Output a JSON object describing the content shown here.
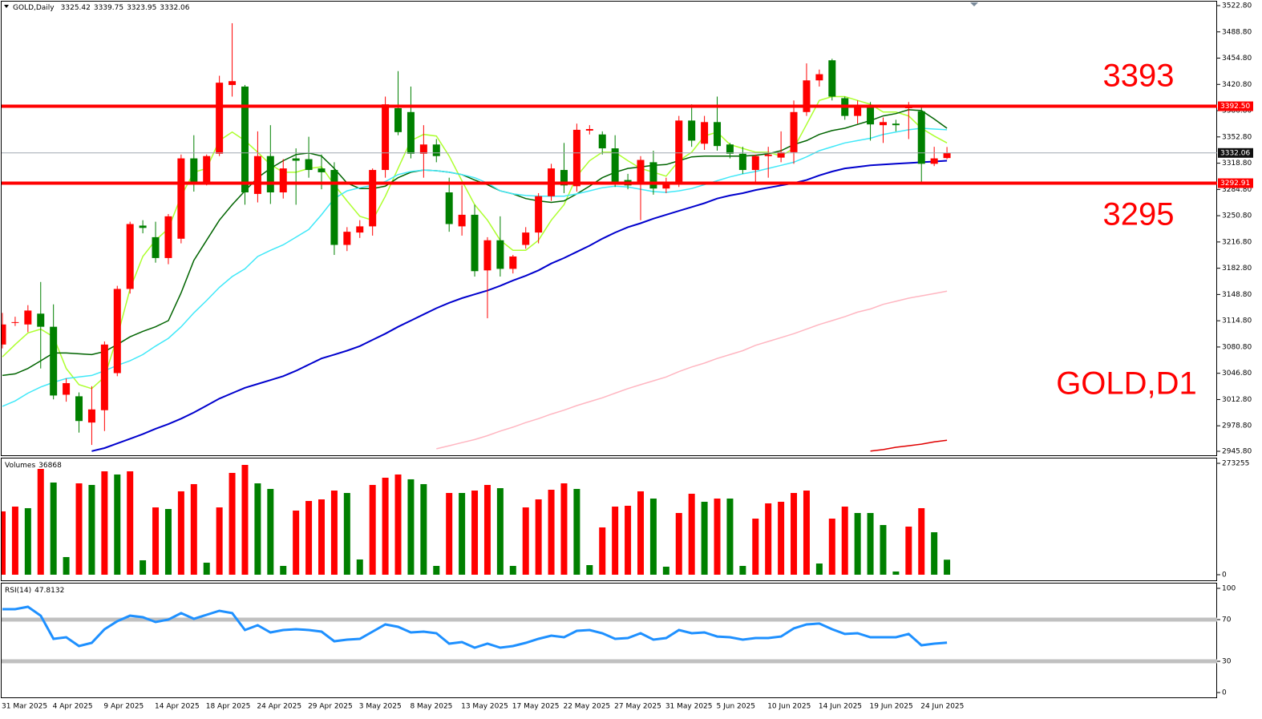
{
  "chart_data": [
    {
      "type": "candlestick",
      "title": "GOLD,Daily",
      "categories": [
        "31 Mar 2025",
        null,
        null,
        null,
        "4 Apr 2025",
        null,
        null,
        null,
        "9 Apr 2025",
        null,
        null,
        null,
        "14 Apr 2025",
        null,
        null,
        null,
        "18 Apr 2025",
        null,
        null,
        null,
        "24 Apr 2025",
        null,
        null,
        null,
        "29 Apr 2025",
        null,
        null,
        null,
        "3 May 2025",
        null,
        null,
        null,
        "8 May 2025",
        null,
        null,
        null,
        "13 May 2025",
        null,
        null,
        null,
        "17 May 2025",
        null,
        null,
        null,
        "22 May 2025",
        null,
        null,
        null,
        "27 May 2025",
        null,
        null,
        null,
        "31 May 2025",
        null,
        null,
        null,
        "5 Jun 2025",
        null,
        null,
        null,
        "10 Jun 2025",
        null,
        null,
        null,
        "14 Jun 2025",
        null,
        null,
        null,
        "19 Jun 2025",
        null,
        null,
        null,
        "24 Jun 2025",
        null,
        null
      ],
      "open": [
        3084,
        3112,
        3110,
        3124,
        3107,
        3019,
        3017,
        2983,
        2999,
        3047,
        3156,
        3238,
        3223,
        3196,
        3221,
        3325,
        3293,
        3331,
        3420,
        3418,
        3279,
        3328,
        3281,
        3325,
        3324,
        3312,
        3310,
        3213,
        3229,
        3237,
        3310,
        3390,
        3385,
        3331,
        3343,
        3281,
        3237,
        3252,
        3180,
        3219,
        3182,
        3213,
        3229,
        3276,
        3310,
        3289,
        3361,
        3356,
        3338,
        3297,
        3291,
        3320,
        3286,
        3293,
        3374,
        3344,
        3372,
        3343,
        3331,
        3310,
        3328,
        3326,
        3333,
        3385,
        3426,
        3452,
        3403,
        3380,
        3393,
        3368,
        3370,
        3390,
        3386,
        3318,
        3325.42
      ],
      "high": [
        3125,
        3120,
        3135,
        3165,
        3136,
        3040,
        3022,
        3030,
        3088,
        3160,
        3243,
        3245,
        3243,
        3253,
        3330,
        3355,
        3330,
        3432,
        3500,
        3420,
        3360,
        3368,
        3324,
        3338,
        3353,
        3330,
        3320,
        3236,
        3245,
        3312,
        3405,
        3438,
        3418,
        3368,
        3350,
        3300,
        3290,
        3265,
        3223,
        3250,
        3200,
        3236,
        3280,
        3318,
        3345,
        3370,
        3368,
        3360,
        3355,
        3305,
        3328,
        3335,
        3300,
        3380,
        3395,
        3380,
        3405,
        3345,
        3340,
        3330,
        3340,
        3360,
        3400,
        3448,
        3440,
        3454,
        3405,
        3400,
        3398,
        3378,
        3375,
        3398,
        3392,
        3340,
        3339.75
      ],
      "low": [
        3079,
        3108,
        3100,
        3053,
        3013,
        3010,
        2970,
        2954,
        2972,
        3043,
        3150,
        3228,
        3190,
        3188,
        3215,
        3282,
        3290,
        3328,
        3405,
        3265,
        3268,
        3266,
        3273,
        3265,
        3300,
        3285,
        3200,
        3205,
        3222,
        3225,
        3300,
        3355,
        3325,
        3300,
        3320,
        3230,
        3225,
        3172,
        3118,
        3172,
        3176,
        3208,
        3215,
        3270,
        3280,
        3282,
        3356,
        3330,
        3288,
        3285,
        3245,
        3278,
        3280,
        3288,
        3340,
        3336,
        3335,
        3325,
        3305,
        3295,
        3300,
        3320,
        3318,
        3380,
        3418,
        3400,
        3375,
        3370,
        3348,
        3345,
        3360,
        3350,
        3295,
        3315,
        3323.95
      ],
      "close": [
        3110,
        3113,
        3128,
        3107,
        3018,
        3034,
        2985,
        3000,
        3084,
        3156,
        3240,
        3235,
        3196,
        3250,
        3325,
        3293,
        3328,
        3423,
        3425,
        3281,
        3328,
        3281,
        3312,
        3322,
        3310,
        3307,
        3213,
        3230,
        3237,
        3310,
        3395,
        3359,
        3331,
        3343,
        3328,
        3240,
        3252,
        3179,
        3219,
        3182,
        3198,
        3229,
        3276,
        3312,
        3290,
        3362,
        3363,
        3338,
        3291,
        3290,
        3323,
        3286,
        3293,
        3374,
        3348,
        3372,
        3341,
        3331,
        3310,
        3328,
        3330,
        3333,
        3385,
        3426,
        3434,
        3405,
        3380,
        3393,
        3369,
        3372,
        3368,
        3393,
        3318,
        3325,
        3332.06
      ],
      "up_color": "#ff0000",
      "down_color": "#008000",
      "ylim": [
        2945.8,
        3522.8
      ],
      "yticks": [
        {
          "value": 3522.8,
          "label": "3522.80"
        },
        {
          "value": 3488.8,
          "label": "3488.80"
        },
        {
          "value": 3454.8,
          "label": "3454.80"
        },
        {
          "value": 3420.8,
          "label": "3420.80"
        },
        {
          "value": 3386.8,
          "label": "3386.80"
        },
        {
          "value": 3352.8,
          "label": "3352.80"
        },
        {
          "value": 3318.8,
          "label": "3318.80"
        },
        {
          "value": 3284.8,
          "label": "3284.80"
        },
        {
          "value": 3250.8,
          "label": "3250.80"
        },
        {
          "value": 3216.8,
          "label": "3216.80"
        },
        {
          "value": 3182.8,
          "label": "3182.80"
        },
        {
          "value": 3148.8,
          "label": "3148.80"
        },
        {
          "value": 3114.8,
          "label": "3114.80"
        },
        {
          "value": 3080.8,
          "label": "3080.80"
        },
        {
          "value": 3046.8,
          "label": "3046.80"
        },
        {
          "value": 3012.8,
          "label": "3012.80"
        },
        {
          "value": 2978.8,
          "label": "2978.80"
        },
        {
          "value": 2945.8,
          "label": "2945.80"
        }
      ],
      "moving_averages": [
        {
          "color": "#adff2f",
          "values": [
            3068,
            3084,
            3099,
            3104,
            3094,
            3053,
            3032,
            3027,
            3042,
            3094,
            3156,
            3198,
            3219,
            3234,
            3276,
            3307,
            3312,
            3348,
            3359,
            3348,
            3333,
            3317,
            3307,
            3307,
            3312,
            3314,
            3291,
            3270,
            3250,
            3245,
            3276,
            3312,
            3348,
            3356,
            3354,
            3328,
            3296,
            3265,
            3245,
            3219,
            3206,
            3206,
            3219,
            3245,
            3265,
            3302,
            3322,
            3333,
            3333,
            3322,
            3312,
            3307,
            3302,
            3322,
            3333,
            3354,
            3359,
            3343,
            3338,
            3333,
            3333,
            3328,
            3338,
            3369,
            3400,
            3405,
            3405,
            3400,
            3395,
            3385,
            3385,
            3380,
            3364,
            3354,
            3345
          ]
        },
        {
          "color": "#006400",
          "values": [
            3044,
            3046,
            3053,
            3063,
            3073,
            3073,
            3072,
            3071,
            3075,
            3084,
            3094,
            3101,
            3107,
            3115,
            3151,
            3193,
            3219,
            3245,
            3265,
            3283,
            3300,
            3312,
            3322,
            3330,
            3332,
            3328,
            3312,
            3293,
            3286,
            3286,
            3289,
            3300,
            3307,
            3310,
            3309,
            3307,
            3304,
            3297,
            3291,
            3283,
            3279,
            3273,
            3270,
            3268,
            3270,
            3279,
            3289,
            3300,
            3307,
            3312,
            3314,
            3316,
            3317,
            3322,
            3327,
            3328,
            3328,
            3328,
            3328,
            3329,
            3331,
            3335,
            3343,
            3348,
            3356,
            3361,
            3364,
            3369,
            3374,
            3380,
            3383,
            3388,
            3387,
            3376,
            3364
          ]
        },
        {
          "color": "#40e8f8",
          "values": [
            3004,
            3011,
            3021,
            3029,
            3035,
            3040,
            3042,
            3044,
            3050,
            3057,
            3063,
            3071,
            3082,
            3092,
            3107,
            3125,
            3141,
            3158,
            3172,
            3182,
            3198,
            3206,
            3213,
            3223,
            3233,
            3252,
            3273,
            3283,
            3287,
            3290,
            3295,
            3304,
            3308,
            3310,
            3309,
            3307,
            3304,
            3300,
            3293,
            3283,
            3279,
            3277,
            3276,
            3276,
            3276,
            3279,
            3283,
            3287,
            3289,
            3288,
            3285,
            3282,
            3281,
            3283,
            3286,
            3291,
            3296,
            3301,
            3305,
            3308,
            3312,
            3316,
            3320,
            3327,
            3335,
            3340,
            3345,
            3348,
            3351,
            3356,
            3359,
            3362,
            3364,
            3363,
            3362
          ]
        },
        {
          "color": "#0000cd",
          "values": [
            null,
            null,
            null,
            null,
            null,
            null,
            null,
            2946,
            2950,
            2956,
            2962,
            2968,
            2975,
            2981,
            2988,
            2996,
            3005,
            3014,
            3021,
            3028,
            3033,
            3038,
            3043,
            3050,
            3058,
            3066,
            3071,
            3076,
            3082,
            3090,
            3098,
            3107,
            3115,
            3123,
            3131,
            3138,
            3144,
            3149,
            3154,
            3160,
            3167,
            3173,
            3180,
            3189,
            3196,
            3204,
            3212,
            3221,
            3229,
            3236,
            3241,
            3247,
            3252,
            3257,
            3262,
            3267,
            3273,
            3277,
            3280,
            3284,
            3287,
            3290,
            3293,
            3297,
            3303,
            3308,
            3312,
            3314,
            3316,
            3317,
            3318,
            3319,
            3320,
            3321,
            3322
          ]
        },
        {
          "color": "#ffb6c1",
          "values": [
            null,
            null,
            null,
            null,
            null,
            null,
            null,
            null,
            null,
            null,
            null,
            null,
            null,
            null,
            null,
            null,
            null,
            null,
            null,
            null,
            null,
            null,
            null,
            null,
            null,
            null,
            null,
            null,
            null,
            null,
            null,
            null,
            null,
            null,
            2949,
            2953,
            2957,
            2961,
            2966,
            2972,
            2977,
            2983,
            2988,
            2994,
            2999,
            3005,
            3010,
            3015,
            3021,
            3027,
            3032,
            3037,
            3042,
            3049,
            3055,
            3060,
            3066,
            3071,
            3076,
            3083,
            3088,
            3093,
            3098,
            3104,
            3110,
            3115,
            3120,
            3126,
            3130,
            3136,
            3140,
            3144,
            3147,
            3150,
            3153
          ]
        },
        {
          "color": "#e00000",
          "values": [
            null,
            null,
            null,
            null,
            null,
            null,
            null,
            null,
            null,
            null,
            null,
            null,
            null,
            null,
            null,
            null,
            null,
            null,
            null,
            null,
            null,
            null,
            null,
            null,
            null,
            null,
            null,
            null,
            null,
            null,
            null,
            null,
            null,
            null,
            null,
            null,
            null,
            null,
            null,
            null,
            null,
            null,
            null,
            null,
            null,
            null,
            null,
            null,
            null,
            null,
            null,
            null,
            null,
            null,
            null,
            null,
            null,
            null,
            null,
            null,
            null,
            null,
            null,
            null,
            null,
            null,
            null,
            null,
            2946,
            2948,
            2951,
            2953,
            2955,
            2958,
            2960
          ]
        }
      ],
      "levels": [
        {
          "value": 3392.5,
          "label": "3392.50",
          "color": "#ff0000"
        },
        {
          "value": 3292.91,
          "label": "3292.91",
          "color": "#ff0000"
        }
      ],
      "price_line_color": "#a0a8b0",
      "annotations": [
        "3393",
        "3295",
        "GOLD,D1"
      ]
    },
    {
      "type": "volume",
      "title": "Volumes",
      "values": [
        155300,
        167100,
        163200,
        259500,
        226100,
        43300,
        224100,
        220200,
        253600,
        245800,
        253600,
        35400,
        165100,
        161200,
        204500,
        222200,
        29500,
        165100,
        249700,
        269300,
        224100,
        210400,
        21600,
        157300,
        180900,
        184800,
        206400,
        200500,
        37400,
        220200,
        237900,
        245800,
        234000,
        222200,
        21600,
        200500,
        200500,
        206400,
        220200,
        212300,
        21600,
        165100,
        184800,
        208400,
        224100,
        210400,
        23600,
        116000,
        167100,
        169100,
        204500,
        186800,
        19700,
        151400,
        198600,
        178900,
        186800,
        186800,
        21600,
        137600,
        175000,
        178900,
        200500,
        206400,
        27500,
        137600,
        167100,
        151400,
        151400,
        121900,
        7900,
        118000,
        163200,
        104200,
        36868
      ],
      "up_color": "#ff0000",
      "down_color": "#008000",
      "ylim": [
        0,
        273255
      ],
      "yticks": [
        0,
        273255
      ]
    },
    {
      "type": "line",
      "title": "RSI(14)",
      "color": "#1e90ff",
      "values": [
        80.0,
        80.0,
        82.3,
        73.8,
        51.5,
        53.1,
        44.6,
        47.7,
        60.8,
        68.5,
        73.8,
        72.3,
        67.7,
        70.0,
        76.2,
        70.8,
        74.6,
        78.5,
        76.2,
        60.0,
        64.6,
        57.7,
        60.0,
        60.8,
        60.0,
        58.5,
        49.2,
        50.8,
        51.5,
        58.5,
        65.4,
        63.1,
        57.7,
        58.5,
        56.9,
        46.9,
        48.5,
        43.1,
        46.9,
        43.1,
        44.6,
        47.7,
        51.5,
        54.6,
        53.1,
        59.2,
        60.0,
        56.9,
        51.5,
        52.3,
        56.9,
        50.8,
        52.3,
        60.0,
        56.9,
        57.7,
        53.8,
        53.1,
        50.8,
        52.3,
        52.3,
        53.8,
        61.5,
        65.4,
        66.2,
        60.8,
        56.2,
        56.9,
        53.1,
        53.1,
        53.1,
        56.2,
        45.4,
        46.9,
        47.8132
      ],
      "ylim": [
        0,
        100
      ],
      "yticks": [
        100,
        70,
        30,
        0
      ],
      "levels": [
        70,
        30
      ],
      "level_color": "#c0c0c0"
    }
  ]
}
